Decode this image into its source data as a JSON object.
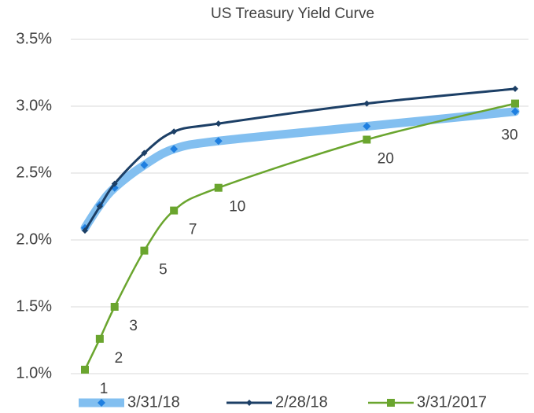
{
  "chart_data": {
    "type": "line",
    "title": "US Treasury Yield Curve",
    "x": [
      1,
      2,
      3,
      5,
      7,
      10,
      20,
      30
    ],
    "xlim": [
      1,
      30
    ],
    "ylim": [
      1.0,
      3.5
    ],
    "yticks": [
      {
        "value": 1.0,
        "label": "1.0%"
      },
      {
        "value": 1.5,
        "label": "1.5%"
      },
      {
        "value": 2.0,
        "label": "2.0%"
      },
      {
        "value": 2.5,
        "label": "2.5%"
      },
      {
        "value": 3.0,
        "label": "3.0%"
      },
      {
        "value": 3.5,
        "label": "3.5%"
      }
    ],
    "grid": true,
    "legend": "bottom",
    "series": [
      {
        "name": "3/31/18",
        "color": "#82bff0",
        "marker": "diamond",
        "marker_color": "#1f7fe0",
        "values": [
          2.09,
          2.26,
          2.39,
          2.56,
          2.68,
          2.74,
          2.85,
          2.96
        ]
      },
      {
        "name": "2/28/18",
        "color": "#1c3f66",
        "marker": "diamond",
        "marker_color": "#1c3f66",
        "values": [
          2.07,
          2.25,
          2.42,
          2.65,
          2.81,
          2.87,
          3.02,
          3.13
        ]
      },
      {
        "name": "3/31/2017",
        "color": "#6aa52e",
        "marker": "square",
        "marker_color": "#6aa52e",
        "values": [
          1.03,
          1.26,
          1.5,
          1.92,
          2.22,
          2.39,
          2.75,
          3.02
        ]
      }
    ],
    "data_labels_series": 2
  }
}
